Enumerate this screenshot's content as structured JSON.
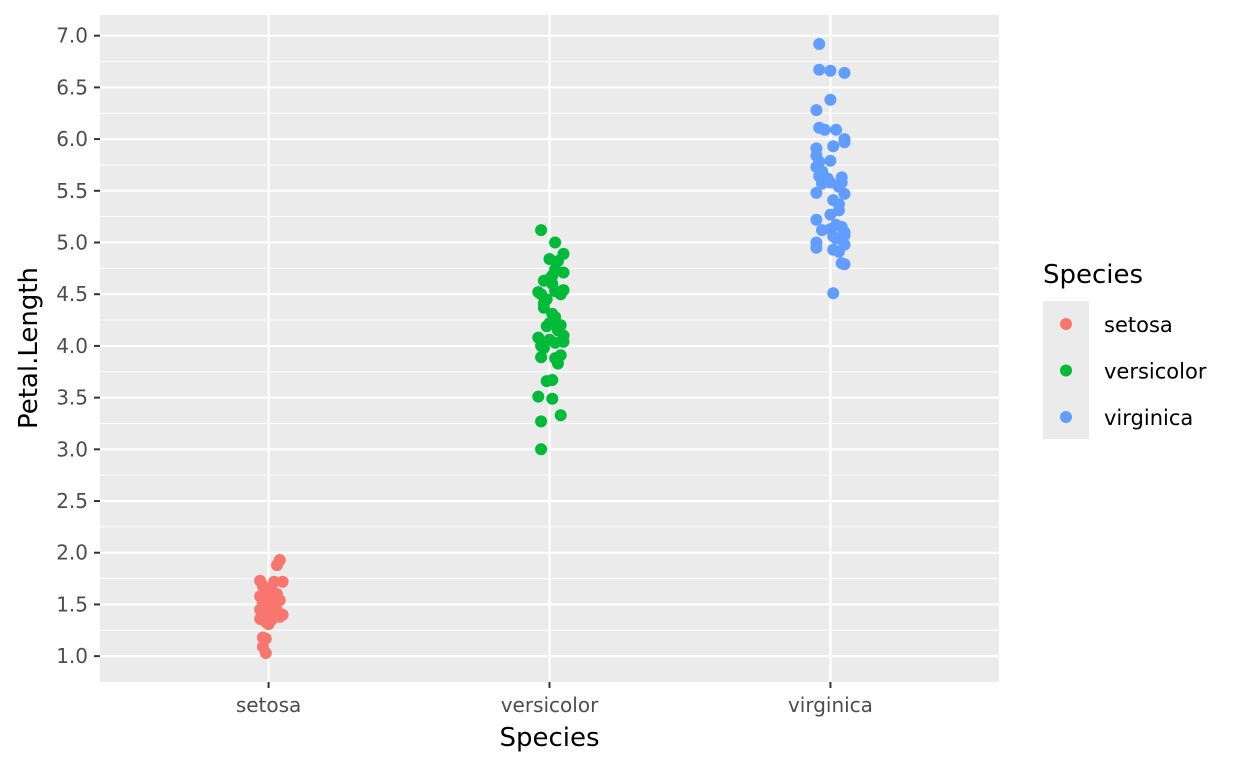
{
  "chart_data": {
    "type": "scatter",
    "title": "",
    "xlabel": "Species",
    "ylabel": "Petal.Length",
    "categories": [
      "setosa",
      "versicolor",
      "virginica"
    ],
    "ylim": [
      0.75,
      7.2
    ],
    "yticks": [
      1.0,
      1.5,
      2.0,
      2.5,
      3.0,
      3.5,
      4.0,
      4.5,
      5.0,
      5.5,
      6.0,
      6.5,
      7.0
    ],
    "ytick_labels": [
      "1.0",
      "1.5",
      "2.0",
      "2.5",
      "3.0",
      "3.5",
      "4.0",
      "4.5",
      "5.0",
      "5.5",
      "6.0",
      "6.5",
      "7.0"
    ],
    "grid": true,
    "legend": {
      "title": "Species",
      "position": "right",
      "entries": [
        {
          "label": "setosa",
          "color": "#F8766D"
        },
        {
          "label": "versicolor",
          "color": "#00BA38"
        },
        {
          "label": "virginica",
          "color": "#619CFF"
        }
      ]
    },
    "series": [
      {
        "name": "setosa",
        "color": "#F8766D",
        "points": [
          [
            0.97,
            1.73
          ],
          [
            1.04,
            1.93
          ],
          [
            1.03,
            1.88
          ],
          [
            1.05,
            1.72
          ],
          [
            1.02,
            1.72
          ],
          [
            0.98,
            1.68
          ],
          [
            1.01,
            1.65
          ],
          [
            0.99,
            1.62
          ],
          [
            1.03,
            1.6
          ],
          [
            0.97,
            1.58
          ],
          [
            1.0,
            1.55
          ],
          [
            1.04,
            1.54
          ],
          [
            0.98,
            1.52
          ],
          [
            1.02,
            1.5
          ],
          [
            0.99,
            1.48
          ],
          [
            1.01,
            1.47
          ],
          [
            0.97,
            1.45
          ],
          [
            1.03,
            1.44
          ],
          [
            1.0,
            1.43
          ],
          [
            0.98,
            1.42
          ],
          [
            1.05,
            1.4
          ],
          [
            1.02,
            1.4
          ],
          [
            0.99,
            1.39
          ],
          [
            1.04,
            1.38
          ],
          [
            0.97,
            1.36
          ],
          [
            1.01,
            1.35
          ],
          [
            0.99,
            1.33
          ],
          [
            1.0,
            1.31
          ],
          [
            0.98,
            1.18
          ],
          [
            0.99,
            1.17
          ],
          [
            0.98,
            1.09
          ],
          [
            0.99,
            1.03
          ]
        ]
      },
      {
        "name": "versicolor",
        "color": "#00BA38",
        "points": [
          [
            1.97,
            5.12
          ],
          [
            2.02,
            5.0
          ],
          [
            2.05,
            4.89
          ],
          [
            2.0,
            4.84
          ],
          [
            2.03,
            4.82
          ],
          [
            2.02,
            4.74
          ],
          [
            2.05,
            4.71
          ],
          [
            2.01,
            4.68
          ],
          [
            2.0,
            4.65
          ],
          [
            1.98,
            4.63
          ],
          [
            2.01,
            4.6
          ],
          [
            2.05,
            4.54
          ],
          [
            2.02,
            4.53
          ],
          [
            1.96,
            4.52
          ],
          [
            1.97,
            4.5
          ],
          [
            2.04,
            4.5
          ],
          [
            1.99,
            4.45
          ],
          [
            1.98,
            4.41
          ],
          [
            1.98,
            4.37
          ],
          [
            2.01,
            4.31
          ],
          [
            2.02,
            4.28
          ],
          [
            2.0,
            4.22
          ],
          [
            2.04,
            4.2
          ],
          [
            1.99,
            4.19
          ],
          [
            2.03,
            4.15
          ],
          [
            2.05,
            4.1
          ],
          [
            1.96,
            4.08
          ],
          [
            2.0,
            4.06
          ],
          [
            2.05,
            4.04
          ],
          [
            2.02,
            4.03
          ],
          [
            1.97,
            4.0
          ],
          [
            1.98,
            3.98
          ],
          [
            2.04,
            3.91
          ],
          [
            1.97,
            3.89
          ],
          [
            2.02,
            3.88
          ],
          [
            2.03,
            3.83
          ],
          [
            1.99,
            3.66
          ],
          [
            2.01,
            3.67
          ],
          [
            1.96,
            3.51
          ],
          [
            2.01,
            3.49
          ],
          [
            2.04,
            3.33
          ],
          [
            1.97,
            3.27
          ],
          [
            1.97,
            3.0
          ]
        ]
      },
      {
        "name": "virginica",
        "color": "#619CFF",
        "points": [
          [
            2.96,
            6.92
          ],
          [
            2.96,
            6.67
          ],
          [
            3.0,
            6.66
          ],
          [
            3.05,
            6.64
          ],
          [
            3.0,
            6.38
          ],
          [
            2.95,
            6.28
          ],
          [
            2.96,
            6.11
          ],
          [
            2.98,
            6.09
          ],
          [
            3.02,
            6.09
          ],
          [
            3.05,
            6.0
          ],
          [
            3.05,
            5.97
          ],
          [
            3.01,
            5.93
          ],
          [
            2.95,
            5.91
          ],
          [
            2.95,
            5.84
          ],
          [
            3.0,
            5.79
          ],
          [
            2.96,
            5.78
          ],
          [
            2.95,
            5.73
          ],
          [
            2.97,
            5.69
          ],
          [
            2.96,
            5.64
          ],
          [
            3.04,
            5.63
          ],
          [
            2.99,
            5.62
          ],
          [
            3.04,
            5.58
          ],
          [
            3.0,
            5.58
          ],
          [
            2.97,
            5.57
          ],
          [
            3.03,
            5.54
          ],
          [
            2.95,
            5.48
          ],
          [
            3.05,
            5.47
          ],
          [
            3.01,
            5.41
          ],
          [
            3.03,
            5.37
          ],
          [
            3.03,
            5.31
          ],
          [
            3.0,
            5.27
          ],
          [
            2.95,
            5.22
          ],
          [
            3.02,
            5.17
          ],
          [
            3.04,
            5.15
          ],
          [
            3.0,
            5.13
          ],
          [
            2.97,
            5.12
          ],
          [
            3.05,
            5.1
          ],
          [
            3.05,
            5.07
          ],
          [
            3.01,
            5.06
          ],
          [
            3.02,
            5.04
          ],
          [
            2.95,
            5.0
          ],
          [
            3.05,
            4.98
          ],
          [
            2.95,
            4.95
          ],
          [
            3.01,
            4.93
          ],
          [
            3.03,
            4.91
          ],
          [
            3.04,
            4.8
          ],
          [
            3.05,
            4.79
          ],
          [
            3.01,
            4.51
          ]
        ]
      }
    ]
  }
}
